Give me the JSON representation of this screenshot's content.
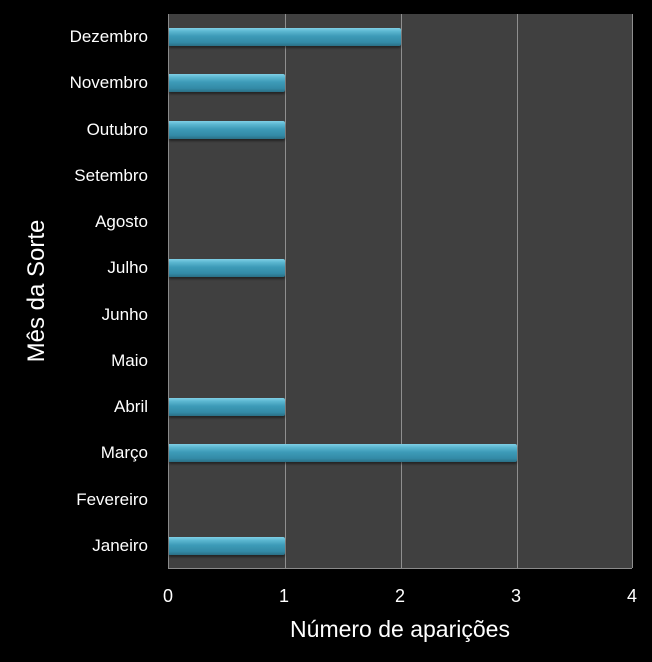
{
  "chart_data": {
    "type": "bar",
    "orientation": "horizontal",
    "title": "",
    "xlabel": "Número de aparições",
    "ylabel": "Mês da Sorte",
    "categories": [
      "Janeiro",
      "Fevereiro",
      "Março",
      "Abril",
      "Maio",
      "Junho",
      "Julho",
      "Agosto",
      "Setembro",
      "Outubro",
      "Novembro",
      "Dezembro"
    ],
    "values": [
      1,
      0,
      3,
      1,
      0,
      0,
      1,
      0,
      0,
      1,
      1,
      2
    ],
    "xlim": [
      0,
      4
    ],
    "xticks": [
      "0",
      "1",
      "2",
      "3",
      "4"
    ],
    "grid": true,
    "legend": null,
    "colors": {
      "bar": "#3d9bb8",
      "plot_bg": "#404040",
      "page_bg": "#000000",
      "grid": "#8f8f8f",
      "text": "#ffffff"
    }
  }
}
